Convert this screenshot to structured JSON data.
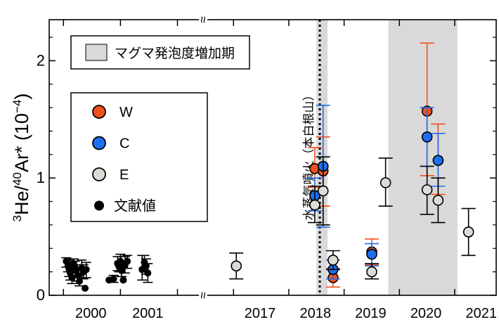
{
  "chart_data": {
    "type": "scatter",
    "title": "",
    "ylabel_parts": {
      "sup1": "3",
      "mid1": "He/",
      "sup2": "40",
      "mid2": "Ar* (10",
      "sup3": "−4",
      "end": ")"
    },
    "ylim": [
      0,
      2.35
    ],
    "yticks": [
      0,
      1,
      2
    ],
    "xticks": [
      "2000",
      "2001",
      "2017",
      "2018",
      "2019",
      "2020",
      "2021"
    ],
    "axis_break_mark": "≈",
    "legend_period": "マグマ発泡度増加期",
    "legend_entries": [
      {
        "label": "W",
        "color": "#f0501e"
      },
      {
        "label": "C",
        "color": "#1e6ef0"
      },
      {
        "label": "E",
        "color": "#dcdcd6"
      },
      {
        "label": "文献値",
        "color": "#000000"
      }
    ],
    "eruption_annotation": "水蒸気噴火（本白根山）",
    "eruption_date": 2018.06,
    "shaded_periods": [
      [
        2018.0,
        2018.2
      ],
      [
        2019.3,
        2020.55
      ]
    ],
    "series": [
      {
        "name": "W",
        "color": "#f0501e",
        "errcolor": "#f0501e",
        "points": [
          {
            "x": 2017.97,
            "y": 1.08,
            "lo": 0.92,
            "hi": 1.26
          },
          {
            "x": 2018.12,
            "y": 1.06,
            "lo": 0.76,
            "hi": 1.35
          },
          {
            "x": 2018.3,
            "y": 0.15,
            "lo": 0.07,
            "hi": 0.23
          },
          {
            "x": 2019.0,
            "y": 0.37,
            "lo": 0.26,
            "hi": 0.48
          },
          {
            "x": 2020.0,
            "y": 1.57,
            "lo": 1.02,
            "hi": 2.15
          },
          {
            "x": 2020.2,
            "y": 1.15,
            "lo": 0.86,
            "hi": 1.46
          }
        ]
      },
      {
        "name": "C",
        "color": "#1e6ef0",
        "errcolor": "#1e6ef0",
        "points": [
          {
            "x": 2017.97,
            "y": 0.85,
            "lo": 0.72,
            "hi": 1.0
          },
          {
            "x": 2018.12,
            "y": 1.1,
            "lo": 0.58,
            "hi": 1.62
          },
          {
            "x": 2018.3,
            "y": 0.22,
            "lo": 0.14,
            "hi": 0.3
          },
          {
            "x": 2019.0,
            "y": 0.35,
            "lo": 0.25,
            "hi": 0.44
          },
          {
            "x": 2020.0,
            "y": 1.35,
            "lo": 1.1,
            "hi": 1.6
          },
          {
            "x": 2020.2,
            "y": 1.15,
            "lo": 0.93,
            "hi": 1.38
          }
        ]
      },
      {
        "name": "E",
        "color": "#dcdcd6",
        "errcolor": "#000000",
        "points": [
          {
            "x": 2016.55,
            "y": 0.25,
            "lo": 0.14,
            "hi": 0.36
          },
          {
            "x": 2017.97,
            "y": 0.77,
            "lo": 0.62,
            "hi": 0.93
          },
          {
            "x": 2018.12,
            "y": 0.89,
            "lo": 0.6,
            "hi": 1.18
          },
          {
            "x": 2018.3,
            "y": 0.3,
            "lo": 0.22,
            "hi": 0.38
          },
          {
            "x": 2019.0,
            "y": 0.2,
            "lo": 0.14,
            "hi": 0.27
          },
          {
            "x": 2019.25,
            "y": 0.96,
            "lo": 0.76,
            "hi": 1.17
          },
          {
            "x": 2020.0,
            "y": 0.9,
            "lo": 0.69,
            "hi": 1.1
          },
          {
            "x": 2020.2,
            "y": 0.81,
            "lo": 0.62,
            "hi": 1.0
          },
          {
            "x": 2020.75,
            "y": 0.54,
            "lo": 0.34,
            "hi": 0.74
          }
        ]
      },
      {
        "name": "文献値",
        "color": "#000000",
        "errcolor": "#000000",
        "points": [
          {
            "x": 1999.55,
            "y": 0.29,
            "lo": 0.24,
            "hi": 0.32
          },
          {
            "x": 1999.58,
            "y": 0.25,
            "lo": 0.2,
            "hi": 0.3
          },
          {
            "x": 1999.6,
            "y": 0.22,
            "lo": 0.16,
            "hi": 0.28
          },
          {
            "x": 1999.62,
            "y": 0.19,
            "lo": 0.13,
            "hi": 0.25
          },
          {
            "x": 1999.65,
            "y": 0.15,
            "lo": 0.1,
            "hi": 0.2
          },
          {
            "x": 1999.68,
            "y": 0.27,
            "lo": 0.22,
            "hi": 0.31
          },
          {
            "x": 1999.7,
            "y": 0.24,
            "lo": 0.19,
            "hi": 0.29
          },
          {
            "x": 1999.72,
            "y": 0.21,
            "lo": 0.16,
            "hi": 0.26
          },
          {
            "x": 1999.75,
            "y": 0.17,
            "lo": 0.12,
            "hi": 0.22
          },
          {
            "x": 1999.78,
            "y": 0.12,
            "lo": 0.08,
            "hi": 0.17
          },
          {
            "x": 1999.82,
            "y": 0.23,
            "lo": 0.15,
            "hi": 0.3
          },
          {
            "x": 1999.85,
            "y": 0.2,
            "lo": 0.14,
            "hi": 0.26
          },
          {
            "x": 1999.88,
            "y": 0.06,
            "lo": 0.06,
            "hi": 0.06
          },
          {
            "x": 1999.9,
            "y": 0.22,
            "lo": 0.15,
            "hi": 0.28
          },
          {
            "x": 2000.3,
            "y": 0.13,
            "lo": 0.13,
            "hi": 0.13
          },
          {
            "x": 2000.38,
            "y": 0.14,
            "lo": 0.11,
            "hi": 0.17
          },
          {
            "x": 2000.45,
            "y": 0.27,
            "lo": 0.21,
            "hi": 0.33
          },
          {
            "x": 2000.48,
            "y": 0.24,
            "lo": 0.2,
            "hi": 0.29
          },
          {
            "x": 2000.5,
            "y": 0.29,
            "lo": 0.24,
            "hi": 0.35
          },
          {
            "x": 2000.52,
            "y": 0.21,
            "lo": 0.16,
            "hi": 0.26
          },
          {
            "x": 2000.55,
            "y": 0.13,
            "lo": 0.13,
            "hi": 0.13
          },
          {
            "x": 2000.58,
            "y": 0.26,
            "lo": 0.19,
            "hi": 0.33
          },
          {
            "x": 2000.62,
            "y": 0.29,
            "lo": 0.23,
            "hi": 0.34
          },
          {
            "x": 2000.88,
            "y": 0.22,
            "lo": 0.13,
            "hi": 0.34
          },
          {
            "x": 2000.92,
            "y": 0.28,
            "lo": 0.2,
            "hi": 0.34
          },
          {
            "x": 2000.95,
            "y": 0.25,
            "lo": 0.18,
            "hi": 0.31
          },
          {
            "x": 2000.98,
            "y": 0.19,
            "lo": 0.11,
            "hi": 0.27
          }
        ]
      }
    ]
  }
}
